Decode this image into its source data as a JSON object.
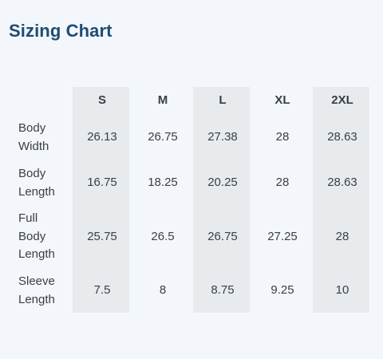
{
  "title": "Sizing Chart",
  "columns": [
    "S",
    "M",
    "L",
    "XL",
    "2XL"
  ],
  "rows": [
    {
      "label": "Body\nWidth",
      "values": [
        "26.13",
        "26.75",
        "27.38",
        "28",
        "28.63"
      ]
    },
    {
      "label": "Body\nLength",
      "values": [
        "16.75",
        "18.25",
        "20.25",
        "28",
        "28.63"
      ]
    },
    {
      "label": "Full\nBody\nLength",
      "values": [
        "25.75",
        "26.5",
        "26.75",
        "27.25",
        "28"
      ]
    },
    {
      "label": "Sleeve\nLength",
      "values": [
        "7.5",
        "8",
        "8.75",
        "9.25",
        "10"
      ]
    }
  ],
  "colors": {
    "title": "#1e4d73",
    "background": "#f3f6fb",
    "shaded_column": "#e7ebee",
    "text": "#3b4046"
  }
}
